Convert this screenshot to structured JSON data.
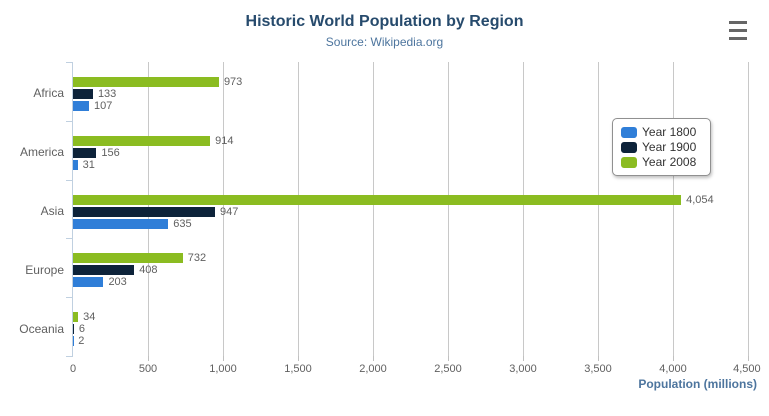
{
  "header": {
    "title": "Historic World Population by Region",
    "subtitle": "Source: Wikipedia.org"
  },
  "chart_data": {
    "type": "bar",
    "orientation": "horizontal",
    "title": "Historic World Population by Region",
    "subtitle": "Source: Wikipedia.org",
    "categories": [
      "Africa",
      "America",
      "Asia",
      "Europe",
      "Oceania"
    ],
    "series": [
      {
        "name": "Year 1800",
        "color": "#2f7ed8",
        "values": [
          107,
          31,
          635,
          203,
          2
        ]
      },
      {
        "name": "Year 1900",
        "color": "#0d233a",
        "values": [
          133,
          156,
          947,
          408,
          6
        ]
      },
      {
        "name": "Year 2008",
        "color": "#8bbc21",
        "values": [
          973,
          914,
          4054,
          732,
          34
        ]
      }
    ],
    "bar_order_top_to_bottom": [
      "Year 2008",
      "Year 1900",
      "Year 1800"
    ],
    "xlabel": "Population (millions)",
    "ylabel": "",
    "xlim": [
      0,
      4500
    ],
    "x_tick_interval": 500,
    "x_tick_labels": [
      "0",
      "500",
      "1,000",
      "1,500",
      "2,000",
      "2,500",
      "3,000",
      "3,500",
      "4,000",
      "4,500"
    ],
    "grid": true,
    "data_labels": true,
    "legend": {
      "position": "right-middle",
      "items": [
        "Year 1800",
        "Year 1900",
        "Year 2008"
      ]
    }
  },
  "styles": {
    "title_color": "#274b6d",
    "subtitle_color": "#4d759e",
    "axis_title_color": "#4d759e",
    "axis_label_color": "#606060",
    "data_label_color": "#606060",
    "grid_color": "#c8c8c8",
    "category_axis_line_color": "#c0d0e0",
    "legend_border_color": "#909090",
    "legend_text_color": "#333333",
    "menu_icon_color": "#666666"
  }
}
